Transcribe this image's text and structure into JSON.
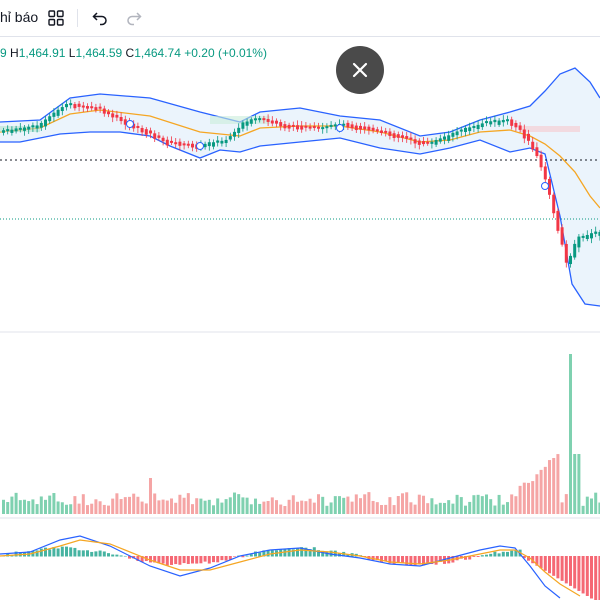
{
  "toolbar": {
    "indicators_label": "hỉ báo",
    "layout_icon": "grid-icon",
    "undo_icon": "undo-icon",
    "redo_icon": "redo-icon"
  },
  "legend": {
    "open_tail": "9",
    "h_key": "H",
    "h_val": "1,464.91",
    "l_key": "L",
    "l_val": "1,464.59",
    "c_key": "C",
    "c_val": "1,464.74",
    "change": "+0.20 (+0.01%)"
  },
  "colors": {
    "up": "#089981",
    "down": "#f23645",
    "bb_band": "#2962ff",
    "ma": "#f5a623",
    "volume_up": "#7fd1b0",
    "volume_down": "#f5a5a5"
  },
  "overlay": {
    "close_icon": "close-icon"
  }
}
